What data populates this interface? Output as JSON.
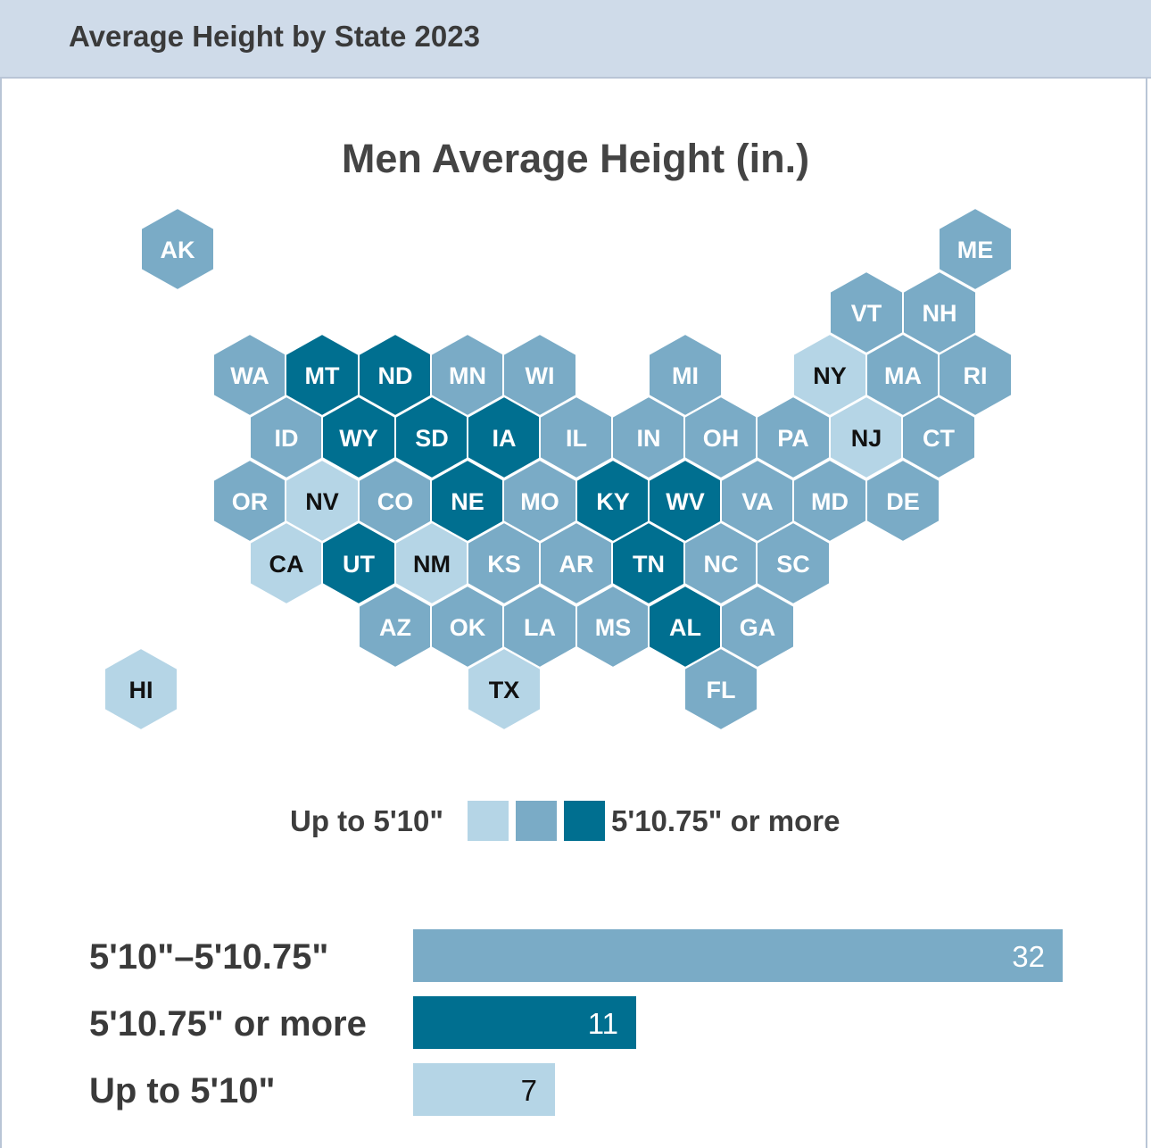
{
  "header": {
    "title": "Average Height by State 2023"
  },
  "colors": {
    "low": "#b5d5e6",
    "mid": "#7aabc6",
    "high": "#006f90",
    "hex_border": "#ffffff",
    "text_on_dark": "#ffffff",
    "text_on_light": "#111111"
  },
  "legend": {
    "low_label": "Up to 5'10\"",
    "high_label": "5'10.75\" or more"
  },
  "chart_data": [
    {
      "type": "hex-tile-map",
      "title": "Men Average Height (in.)",
      "categories": [
        "Up to 5'10\"",
        "5'10\"–5'10.75\"",
        "5'10.75\" or more"
      ],
      "states": [
        {
          "abbr": "AK",
          "cat": "mid"
        },
        {
          "abbr": "ME",
          "cat": "mid"
        },
        {
          "abbr": "VT",
          "cat": "mid"
        },
        {
          "abbr": "NH",
          "cat": "mid"
        },
        {
          "abbr": "WA",
          "cat": "mid"
        },
        {
          "abbr": "MT",
          "cat": "high"
        },
        {
          "abbr": "ND",
          "cat": "high"
        },
        {
          "abbr": "MN",
          "cat": "mid"
        },
        {
          "abbr": "WI",
          "cat": "mid"
        },
        {
          "abbr": "MI",
          "cat": "mid"
        },
        {
          "abbr": "NY",
          "cat": "low"
        },
        {
          "abbr": "MA",
          "cat": "mid"
        },
        {
          "abbr": "RI",
          "cat": "mid"
        },
        {
          "abbr": "ID",
          "cat": "mid"
        },
        {
          "abbr": "WY",
          "cat": "high"
        },
        {
          "abbr": "SD",
          "cat": "high"
        },
        {
          "abbr": "IA",
          "cat": "high"
        },
        {
          "abbr": "IL",
          "cat": "mid"
        },
        {
          "abbr": "IN",
          "cat": "mid"
        },
        {
          "abbr": "OH",
          "cat": "mid"
        },
        {
          "abbr": "PA",
          "cat": "mid"
        },
        {
          "abbr": "NJ",
          "cat": "low"
        },
        {
          "abbr": "CT",
          "cat": "mid"
        },
        {
          "abbr": "OR",
          "cat": "mid"
        },
        {
          "abbr": "NV",
          "cat": "low"
        },
        {
          "abbr": "CO",
          "cat": "mid"
        },
        {
          "abbr": "NE",
          "cat": "high"
        },
        {
          "abbr": "MO",
          "cat": "mid"
        },
        {
          "abbr": "KY",
          "cat": "high"
        },
        {
          "abbr": "WV",
          "cat": "high"
        },
        {
          "abbr": "VA",
          "cat": "mid"
        },
        {
          "abbr": "MD",
          "cat": "mid"
        },
        {
          "abbr": "DE",
          "cat": "mid"
        },
        {
          "abbr": "CA",
          "cat": "low"
        },
        {
          "abbr": "UT",
          "cat": "high"
        },
        {
          "abbr": "NM",
          "cat": "low"
        },
        {
          "abbr": "KS",
          "cat": "mid"
        },
        {
          "abbr": "AR",
          "cat": "mid"
        },
        {
          "abbr": "TN",
          "cat": "high"
        },
        {
          "abbr": "NC",
          "cat": "mid"
        },
        {
          "abbr": "SC",
          "cat": "mid"
        },
        {
          "abbr": "AZ",
          "cat": "mid"
        },
        {
          "abbr": "OK",
          "cat": "mid"
        },
        {
          "abbr": "LA",
          "cat": "mid"
        },
        {
          "abbr": "MS",
          "cat": "mid"
        },
        {
          "abbr": "AL",
          "cat": "high"
        },
        {
          "abbr": "GA",
          "cat": "mid"
        },
        {
          "abbr": "HI",
          "cat": "low"
        },
        {
          "abbr": "TX",
          "cat": "low"
        },
        {
          "abbr": "FL",
          "cat": "mid"
        }
      ]
    },
    {
      "type": "bar",
      "orientation": "horizontal",
      "categories": [
        "5'10\"–5'10.75\"",
        "5'10.75\" or more",
        "Up to 5'10\""
      ],
      "values": [
        32,
        11,
        7
      ],
      "xlim": [
        0,
        32
      ]
    }
  ]
}
